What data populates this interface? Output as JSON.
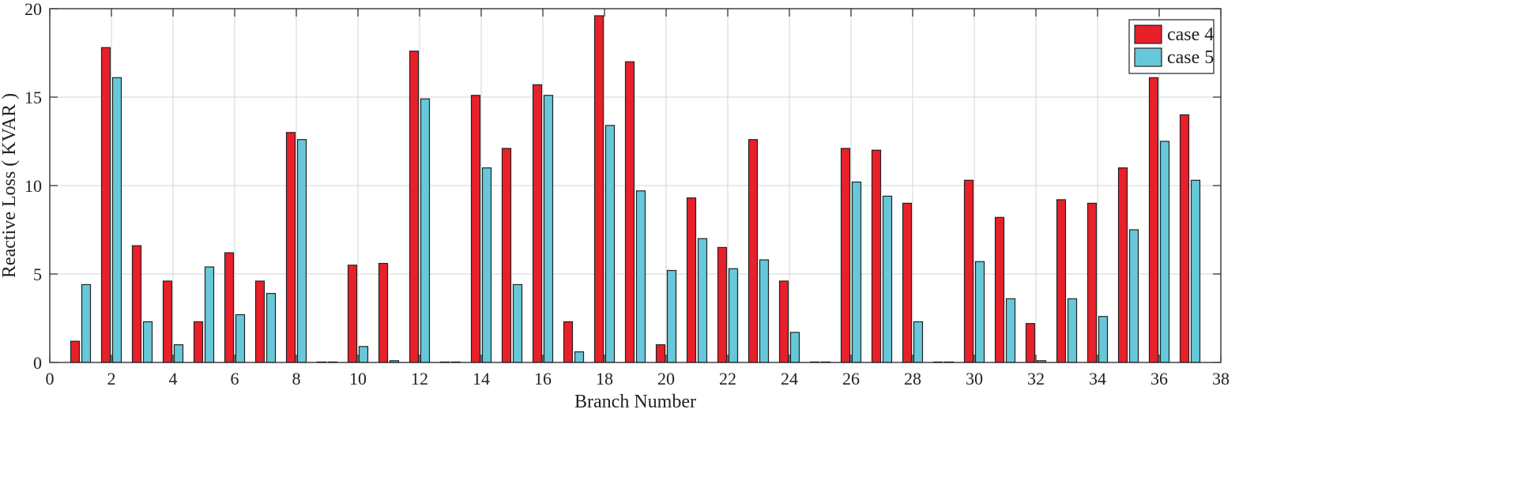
{
  "chart_data": {
    "type": "bar",
    "xlabel": "Branch Number",
    "ylabel": "Reactive Loss ( KVAR )",
    "xlim": [
      0,
      38
    ],
    "ylim": [
      0,
      20
    ],
    "xticks": [
      0,
      2,
      4,
      6,
      8,
      10,
      12,
      14,
      16,
      18,
      20,
      22,
      24,
      26,
      28,
      30,
      32,
      34,
      36,
      38
    ],
    "yticks": [
      0,
      5,
      10,
      15,
      20
    ],
    "grid": true,
    "legend_position": "top-right",
    "categories": [
      1,
      2,
      3,
      4,
      5,
      6,
      7,
      8,
      9,
      10,
      11,
      12,
      13,
      14,
      15,
      16,
      17,
      18,
      19,
      20,
      21,
      22,
      23,
      24,
      25,
      26,
      27,
      28,
      29,
      30,
      31,
      32,
      33,
      34,
      35,
      36,
      37
    ],
    "series": [
      {
        "name": "case 4",
        "color": "#e8202a",
        "values": [
          1.2,
          17.8,
          6.6,
          4.6,
          2.3,
          6.2,
          4.6,
          13.0,
          0,
          5.5,
          5.6,
          17.6,
          0,
          15.1,
          12.1,
          15.7,
          2.3,
          19.6,
          17.0,
          1.0,
          9.3,
          6.5,
          12.6,
          4.6,
          0,
          12.1,
          12.0,
          9.0,
          0,
          10.3,
          8.2,
          2.2,
          9.2,
          9.0,
          11.0,
          16.1,
          14.0
        ]
      },
      {
        "name": "case 5",
        "color": "#66c8d8",
        "values": [
          4.4,
          16.1,
          2.3,
          1.0,
          5.4,
          2.7,
          3.9,
          12.6,
          0,
          0.9,
          0.1,
          14.9,
          0,
          11.0,
          4.4,
          15.1,
          0.6,
          13.4,
          9.7,
          5.2,
          7.0,
          5.3,
          5.8,
          1.7,
          0,
          10.2,
          9.4,
          2.3,
          0,
          5.7,
          3.6,
          0.1,
          3.6,
          2.6,
          7.5,
          12.5,
          10.3
        ]
      }
    ]
  }
}
